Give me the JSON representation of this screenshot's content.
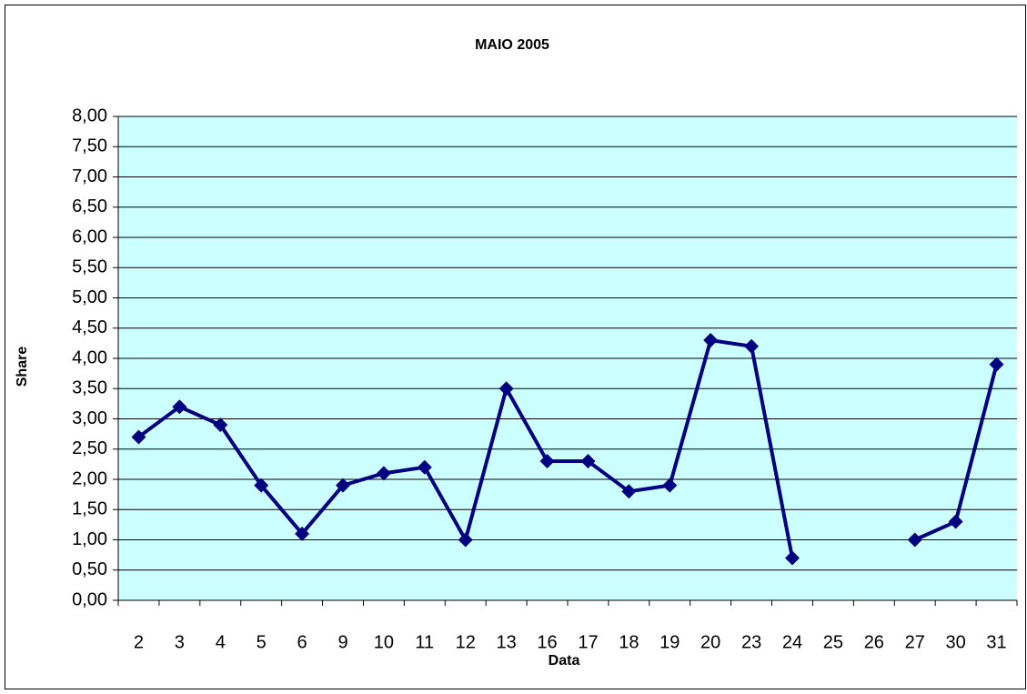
{
  "chart_data": {
    "type": "line",
    "title": "MAIO 2005",
    "x_label": "Data",
    "y_label": "Share",
    "categories": [
      "2",
      "3",
      "4",
      "5",
      "6",
      "9",
      "10",
      "11",
      "12",
      "13",
      "16",
      "17",
      "18",
      "19",
      "20",
      "23",
      "24",
      "25",
      "26",
      "27",
      "30",
      "31"
    ],
    "series": [
      {
        "name": "Share",
        "color": "#000080",
        "values": [
          2.7,
          3.2,
          2.9,
          1.9,
          1.1,
          1.9,
          2.1,
          2.2,
          1.0,
          3.5,
          2.3,
          2.3,
          1.8,
          1.9,
          4.3,
          4.2,
          0.7,
          null,
          null,
          1.0,
          1.3,
          3.9
        ]
      }
    ],
    "ylim": [
      0,
      8
    ],
    "yticks": [
      {
        "value": 0,
        "label": "0,00"
      },
      {
        "value": 0.5,
        "label": "0,50"
      },
      {
        "value": 1,
        "label": "1,00"
      },
      {
        "value": 1.5,
        "label": "1,50"
      },
      {
        "value": 2,
        "label": "2,00"
      },
      {
        "value": 2.5,
        "label": "2,50"
      },
      {
        "value": 3,
        "label": "3,00"
      },
      {
        "value": 3.5,
        "label": "3,50"
      },
      {
        "value": 4,
        "label": "4,00"
      },
      {
        "value": 4.5,
        "label": "4,50"
      },
      {
        "value": 5,
        "label": "5,00"
      },
      {
        "value": 5.5,
        "label": "5,50"
      },
      {
        "value": 6,
        "label": "6,00"
      },
      {
        "value": 6.5,
        "label": "6,50"
      },
      {
        "value": 7,
        "label": "7,00"
      },
      {
        "value": 7.5,
        "label": "7,50"
      },
      {
        "value": 8,
        "label": "8,00"
      }
    ],
    "grid": true,
    "plot_background": "#ccffff"
  }
}
